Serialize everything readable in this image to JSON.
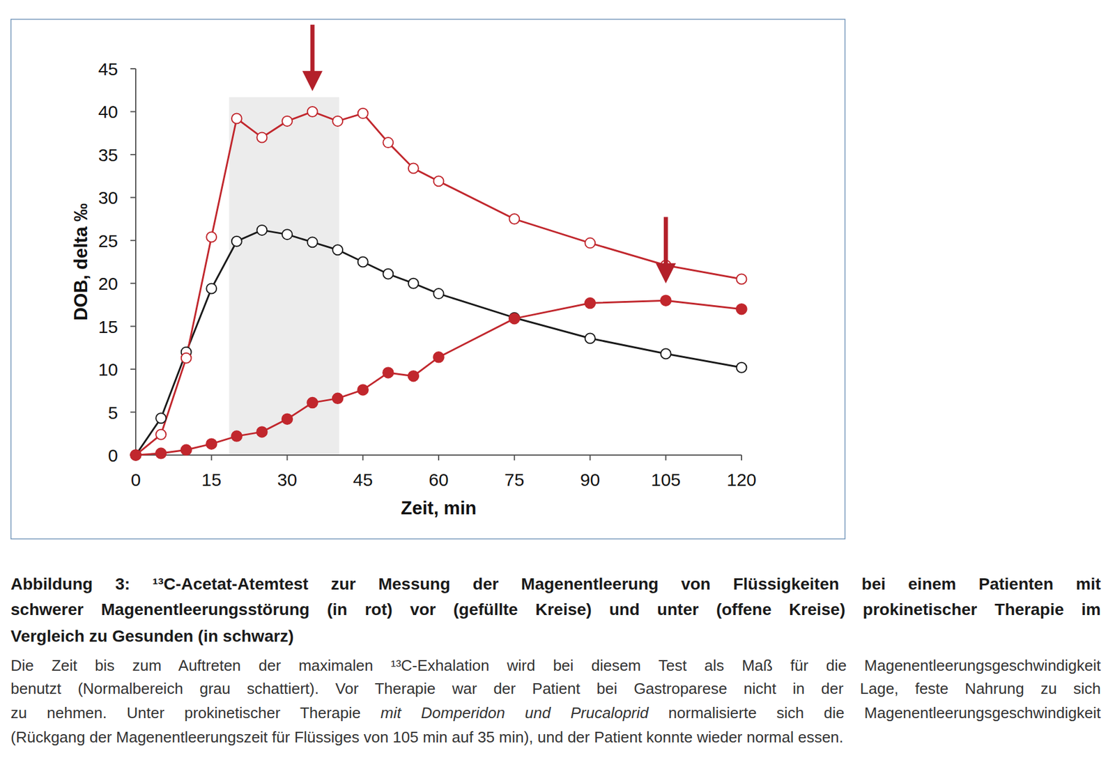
{
  "chart_data": {
    "type": "line",
    "x": [
      0,
      5,
      10,
      15,
      20,
      25,
      30,
      35,
      40,
      45,
      50,
      55,
      60,
      75,
      90,
      105,
      120
    ],
    "xlim": [
      0,
      120
    ],
    "xticks": [
      0,
      15,
      30,
      45,
      60,
      75,
      90,
      105,
      120
    ],
    "ylim": [
      0,
      45
    ],
    "yticks": [
      0,
      5,
      10,
      15,
      20,
      25,
      30,
      35,
      40,
      45
    ],
    "x_label": "Zeit, min",
    "y_label": "DOB, delta ‰",
    "grid": false,
    "series": [
      {
        "color": "#1a1a1a",
        "marker": "open",
        "values": [
          0,
          4.3,
          12,
          19.4,
          24.9,
          26.2,
          25.7,
          24.8,
          23.9,
          22.5,
          21.1,
          20,
          18.8,
          16,
          13.6,
          11.8,
          10.2
        ]
      },
      {
        "color": "#c1272d",
        "marker": "open",
        "values": [
          0,
          2.4,
          11.3,
          25.4,
          39.2,
          37,
          38.9,
          40,
          38.9,
          39.8,
          36.4,
          33.4,
          31.9,
          27.5,
          24.7,
          22.1,
          20.5
        ]
      },
      {
        "color": "#c1272d",
        "marker": "filled",
        "values": [
          0,
          0.2,
          0.6,
          1.3,
          2.2,
          2.7,
          4.2,
          6.1,
          6.6,
          7.6,
          9.6,
          9.2,
          11.4,
          15.9,
          17.7,
          18,
          17
        ]
      }
    ],
    "normal_range": [
      18.5,
      40.3
    ],
    "arrows": [
      {
        "x": 35,
        "y": 42.4,
        "color": "#b3202a"
      },
      {
        "x": 105,
        "y": 20,
        "color": "#b3202a"
      }
    ]
  },
  "caption": {
    "title_lines": [
      "Abbildung 3: ¹³C-Acetat-Atemtest zur Messung der Magenentleerung von Flüssigkeiten bei einem Patienten mit",
      "schwerer Magenentleerungsstörung (in rot) vor (gefüllte Kreise) und unter (offene Kreise) prokinetischer Therapie im",
      "Vergleich zu Gesunden (in schwarz)"
    ],
    "body_lines": [
      [
        {
          "text": "Die Zeit bis zum Auftreten der maximalen ¹³C-Exhalation wird bei diesem Test als Maß für die Magenentleerungsgeschwindigkeit",
          "italic": false
        }
      ],
      [
        {
          "text": "benutzt (Normalbereich grau schattiert). Vor Therapie war der Patient bei Gastroparese nicht in der Lage, feste Nahrung zu sich",
          "italic": false
        }
      ],
      [
        {
          "text": "zu nehmen. Unter prokinetischer Therapie ",
          "italic": false
        },
        {
          "text": "mit Domperidon und Prucaloprid",
          "italic": true
        },
        {
          "text": " normalisierte sich die Magenentleerungsgeschwindigkeit",
          "italic": false
        }
      ],
      [
        {
          "text": "(Rückgang der Magenentleerungszeit für Flüssiges von 105 min auf 35 min), und der Patient konnte wieder normal essen.",
          "italic": false
        }
      ]
    ]
  }
}
